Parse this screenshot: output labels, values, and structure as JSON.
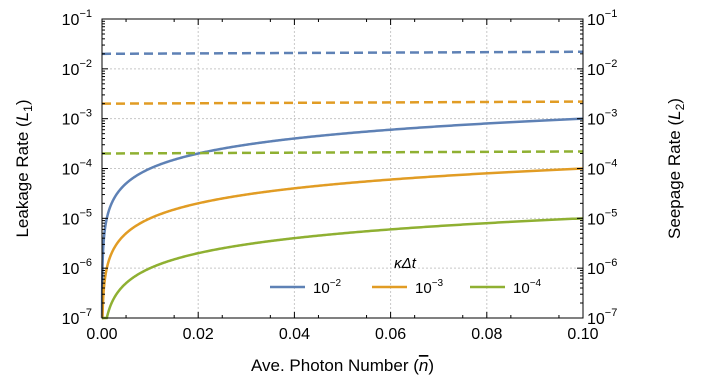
{
  "chart_data": {
    "type": "line",
    "xlabel": "Ave. Photon Number",
    "xlabel_symbol": "n",
    "ylabel_left": "Leakage Rate",
    "ylabel_left_symbol": "L",
    "ylabel_left_sub": "1",
    "ylabel_right": "Seepage Rate",
    "ylabel_right_symbol": "L",
    "ylabel_right_sub": "2",
    "xlim": [
      0.0,
      0.1
    ],
    "ylim": [
      1e-07,
      0.1
    ],
    "y_scale": "log",
    "grid": true,
    "x_ticks": [
      0.0,
      0.02,
      0.04,
      0.06,
      0.08,
      0.1
    ],
    "x_tick_labels": [
      "0.00",
      "0.02",
      "0.04",
      "0.06",
      "0.08",
      "0.10"
    ],
    "y_ticks": [
      {
        "base": "10",
        "exp": "−1"
      },
      {
        "base": "10",
        "exp": "−2"
      },
      {
        "base": "10",
        "exp": "−3"
      },
      {
        "base": "10",
        "exp": "−4"
      },
      {
        "base": "10",
        "exp": "−5"
      },
      {
        "base": "10",
        "exp": "−6"
      },
      {
        "base": "10",
        "exp": "−7"
      }
    ],
    "legend": {
      "title": "κΔt",
      "placement": "lower-right",
      "entries": [
        {
          "base": "10",
          "exp": "−2",
          "color": "#5e81b5"
        },
        {
          "base": "10",
          "exp": "−3",
          "color": "#e19c24"
        },
        {
          "base": "10",
          "exp": "−4",
          "color": "#8fb032"
        }
      ]
    },
    "series": [
      {
        "kappa_dt": 0.01,
        "color": "#5e81b5",
        "line": "solid",
        "axis": "L1",
        "x": [
          0.0,
          0.001,
          0.002,
          0.005,
          0.01,
          0.02,
          0.04,
          0.06,
          0.08,
          0.1
        ],
        "y": [
          1e-07,
          1e-05,
          2e-05,
          5e-05,
          0.0001,
          0.0002,
          0.0004,
          0.0006,
          0.0008,
          0.001
        ]
      },
      {
        "kappa_dt": 0.001,
        "color": "#e19c24",
        "line": "solid",
        "axis": "L1",
        "x": [
          0.0,
          0.001,
          0.002,
          0.005,
          0.01,
          0.02,
          0.04,
          0.06,
          0.08,
          0.1
        ],
        "y": [
          1e-07,
          1e-06,
          2e-06,
          5e-06,
          1e-05,
          2e-05,
          4e-05,
          6e-05,
          8e-05,
          0.0001
        ]
      },
      {
        "kappa_dt": 0.0001,
        "color": "#8fb032",
        "line": "solid",
        "axis": "L1",
        "x": [
          0.0,
          0.001,
          0.002,
          0.005,
          0.01,
          0.02,
          0.04,
          0.06,
          0.08,
          0.1
        ],
        "y": [
          1e-07,
          1e-07,
          2e-07,
          5e-07,
          1e-06,
          2e-06,
          4e-06,
          6e-06,
          8e-06,
          1e-05
        ]
      },
      {
        "kappa_dt": 0.01,
        "color": "#5e81b5",
        "line": "dashed",
        "axis": "L2",
        "x": [
          0.0,
          0.05,
          0.1
        ],
        "y": [
          0.02,
          0.021,
          0.022
        ]
      },
      {
        "kappa_dt": 0.001,
        "color": "#e19c24",
        "line": "dashed",
        "axis": "L2",
        "x": [
          0.0,
          0.05,
          0.1
        ],
        "y": [
          0.002,
          0.0021,
          0.0022
        ]
      },
      {
        "kappa_dt": 0.0001,
        "color": "#8fb032",
        "line": "dashed",
        "axis": "L2",
        "x": [
          0.0,
          0.05,
          0.1
        ],
        "y": [
          0.0002,
          0.00021,
          0.00022
        ]
      }
    ]
  }
}
